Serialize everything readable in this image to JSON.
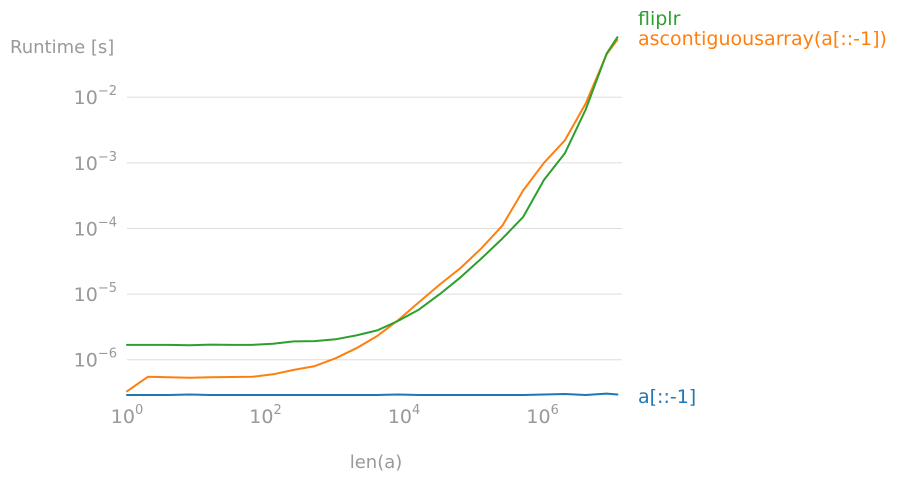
{
  "chart_data": {
    "type": "line",
    "ylabel": "Runtime [s]",
    "xlabel": "len(a)",
    "xscale": "log",
    "yscale": "log",
    "xlim": [
      1,
      14000000
    ],
    "ylim": [
      2.8e-07,
      0.15
    ],
    "grid": "horizontal",
    "legend": "labels at right end of lines",
    "x_ticks": [
      {
        "value": 1,
        "base": "10",
        "exp": "0"
      },
      {
        "value": 100,
        "base": "10",
        "exp": "2"
      },
      {
        "value": 10000,
        "base": "10",
        "exp": "4"
      },
      {
        "value": 1000000,
        "base": "10",
        "exp": "6"
      }
    ],
    "y_ticks": [
      {
        "value": 1e-06,
        "base": "10",
        "exp": "−6"
      },
      {
        "value": 1e-05,
        "base": "10",
        "exp": "−5"
      },
      {
        "value": 0.0001,
        "base": "10",
        "exp": "−4"
      },
      {
        "value": 0.001,
        "base": "10",
        "exp": "−3"
      },
      {
        "value": 0.01,
        "base": "10",
        "exp": "−2"
      }
    ],
    "x": [
      1,
      2,
      4,
      8,
      16,
      32,
      64,
      128,
      256,
      512,
      1024,
      2048,
      4096,
      8192,
      16384,
      32768,
      65536,
      131072,
      262144,
      524288,
      1048576,
      2097152,
      4194304,
      8388608,
      12000000
    ],
    "series": [
      {
        "name": "a[::-1]",
        "color": "#1f77b4",
        "values": [
          2.9e-07,
          2.9e-07,
          2.9e-07,
          2.95e-07,
          2.9e-07,
          2.9e-07,
          2.9e-07,
          2.9e-07,
          2.9e-07,
          2.9e-07,
          2.9e-07,
          2.9e-07,
          2.9e-07,
          2.95e-07,
          2.9e-07,
          2.9e-07,
          2.9e-07,
          2.9e-07,
          2.9e-07,
          2.9e-07,
          2.95e-07,
          3e-07,
          2.9e-07,
          3.05e-07,
          2.95e-07
        ]
      },
      {
        "name": "ascontiguousarray(a[::-1])",
        "color": "#ff7f0e",
        "values": [
          3.3e-07,
          5.5e-07,
          5.4e-07,
          5.3e-07,
          5.4e-07,
          5.45e-07,
          5.5e-07,
          6e-07,
          7e-07,
          8e-07,
          1.05e-06,
          1.5e-06,
          2.3e-06,
          4e-06,
          7.5e-06,
          1.4e-05,
          2.5e-05,
          5e-05,
          0.00011,
          0.00038,
          0.001,
          0.0022,
          0.008,
          0.045,
          0.075
        ]
      },
      {
        "name": "fliplr",
        "color": "#2ca02c",
        "values": [
          1.68e-06,
          1.68e-06,
          1.68e-06,
          1.66e-06,
          1.7e-06,
          1.68e-06,
          1.68e-06,
          1.75e-06,
          1.9e-06,
          1.92e-06,
          2.05e-06,
          2.35e-06,
          2.8e-06,
          3.9e-06,
          5.8e-06,
          1e-05,
          1.8e-05,
          3.5e-05,
          7e-05,
          0.00015,
          0.00055,
          0.0014,
          0.0065,
          0.046,
          0.082
        ]
      }
    ]
  }
}
